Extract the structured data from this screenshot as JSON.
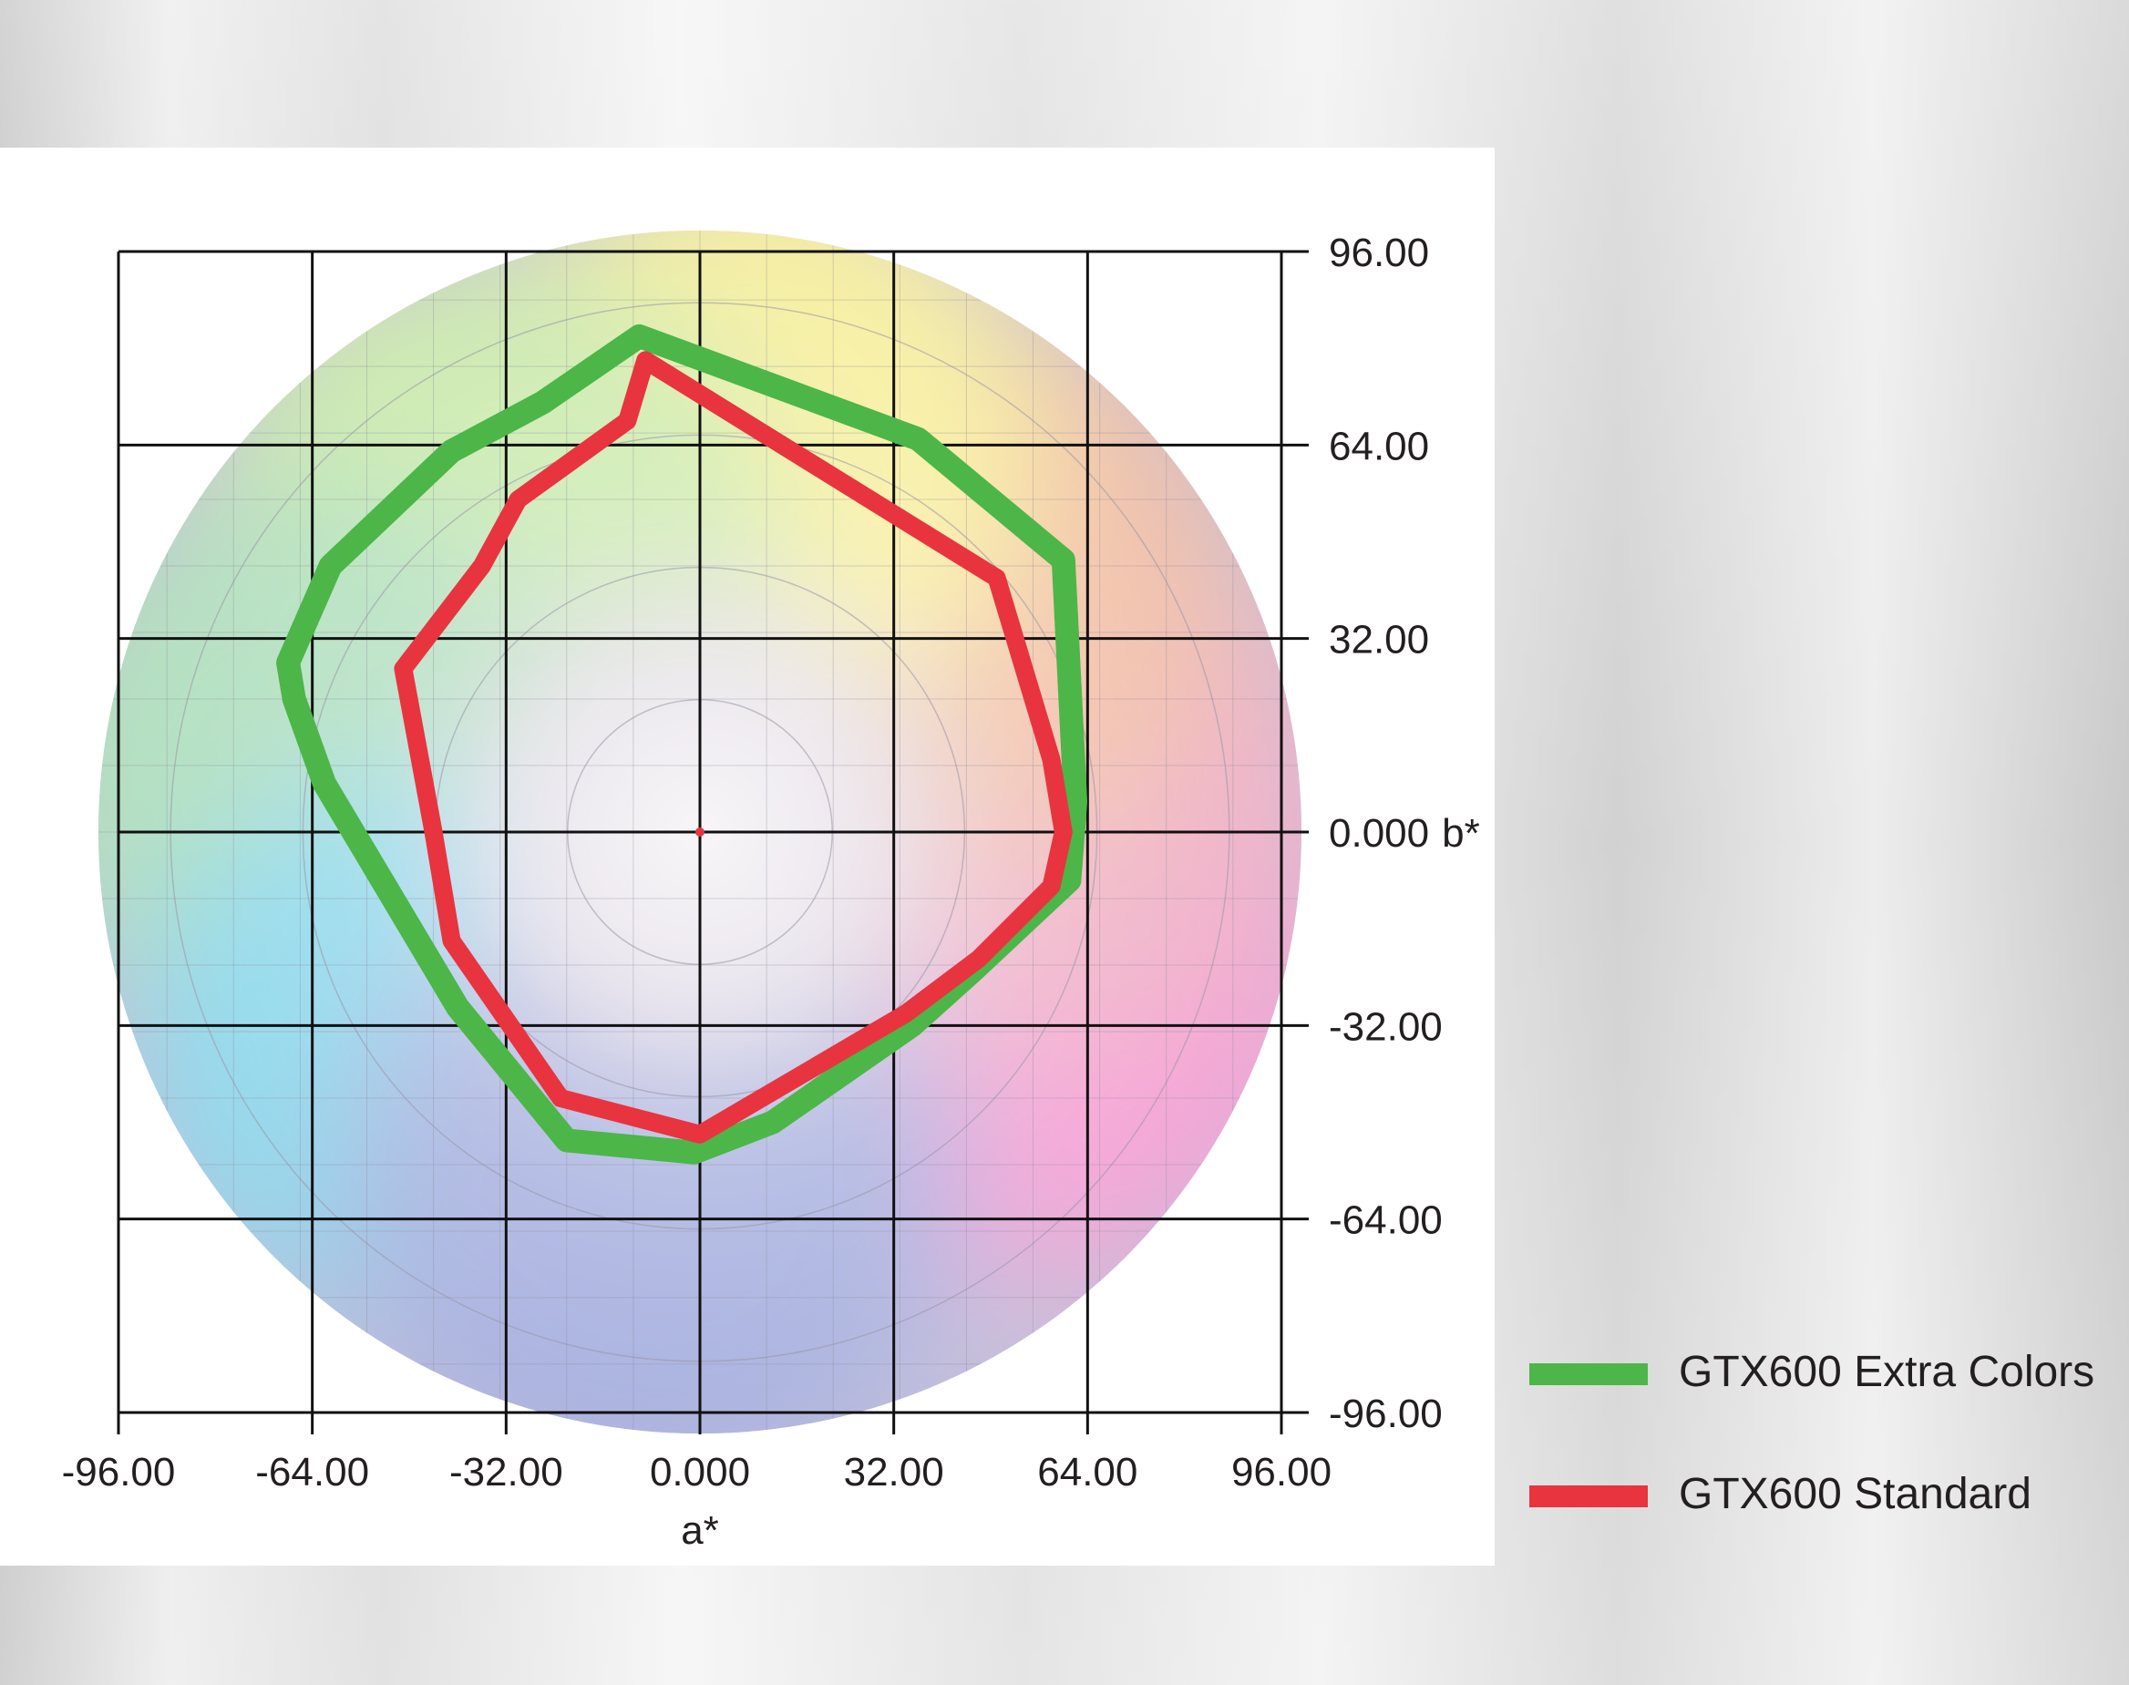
{
  "chart_data": {
    "type": "line",
    "xlabel": "a*",
    "ylabel": "b*",
    "xlim": [
      -96,
      96
    ],
    "ylim": [
      -96,
      96
    ],
    "x_ticks": [
      "-96.00",
      "-64.00",
      "-32.00",
      "0.000",
      "32.00",
      "64.00",
      "96.00"
    ],
    "y_ticks": [
      "96.00",
      "64.00",
      "32.00",
      "0.000",
      "-32.00",
      "-64.00",
      "-96.00"
    ],
    "y_ticks_side": "right",
    "background": "CIELAB a*/b* color wheel",
    "grid": true,
    "legend_position": "bottom-right",
    "series": [
      {
        "name": "GTX600 Extra Colors",
        "color": "#4cb648",
        "x": [
          -10,
          36,
          60,
          62,
          61,
          45,
          35,
          12,
          -1,
          -22,
          -40,
          -62,
          -67,
          -68,
          -61,
          -41,
          -26,
          -10
        ],
        "y": [
          82,
          65,
          45,
          5,
          -8,
          -23,
          -32,
          -48,
          -53,
          -51,
          -29,
          8,
          22,
          28,
          44,
          63,
          71,
          82
        ]
      },
      {
        "name": "GTX600 Standard",
        "color": "#e8343f",
        "x": [
          -9,
          49,
          58,
          60,
          58,
          46,
          34,
          0,
          -23,
          -41,
          -44,
          -49,
          -36,
          -30,
          -12,
          -9
        ],
        "y": [
          78,
          42,
          12,
          0,
          -9,
          -21,
          -30,
          -50,
          -44,
          -18,
          0,
          27,
          44,
          55,
          68,
          78
        ]
      }
    ]
  },
  "colors": {
    "grid": "#111111",
    "tick_text": "#231f20"
  }
}
